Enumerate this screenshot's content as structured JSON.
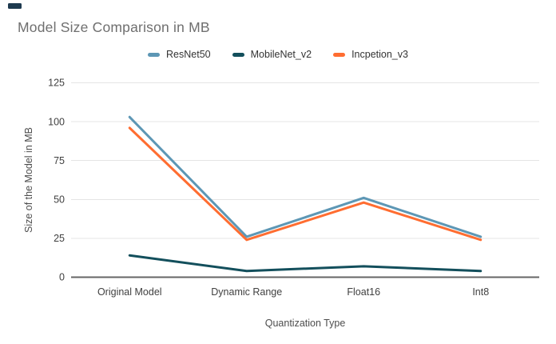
{
  "title": "Model Size Comparison in MB",
  "colors": {
    "title_text": "#6f6f6f",
    "tick_text": "#404040",
    "gridline": "#e4e4e4",
    "zero_axis": "#666666",
    "series_resnet50": "#5d97b5",
    "series_mobilenet_v2": "#134f5c",
    "series_inception_v3": "#ff6d31"
  },
  "chart_data": {
    "type": "line",
    "title": "Model Size Comparison in MB",
    "xlabel": "Quantization Type",
    "ylabel": "Size of the Model in MB",
    "categories": [
      "Original Model",
      "Dynamic Range",
      "Float16",
      "Int8"
    ],
    "series": [
      {
        "name": "ResNet50",
        "color": "#5d97b5",
        "values": [
          103,
          26,
          51,
          26
        ]
      },
      {
        "name": "MobileNet_v2",
        "color": "#134f5c",
        "values": [
          14,
          4,
          7,
          4
        ]
      },
      {
        "name": "Incpetion_v3",
        "color": "#ff6d31",
        "values": [
          96,
          24,
          48,
          24
        ]
      }
    ],
    "yticks": [
      0,
      25,
      50,
      75,
      100,
      125
    ],
    "ylim": [
      0,
      125
    ],
    "grid": true,
    "legend_position": "top",
    "line_width": 3
  }
}
